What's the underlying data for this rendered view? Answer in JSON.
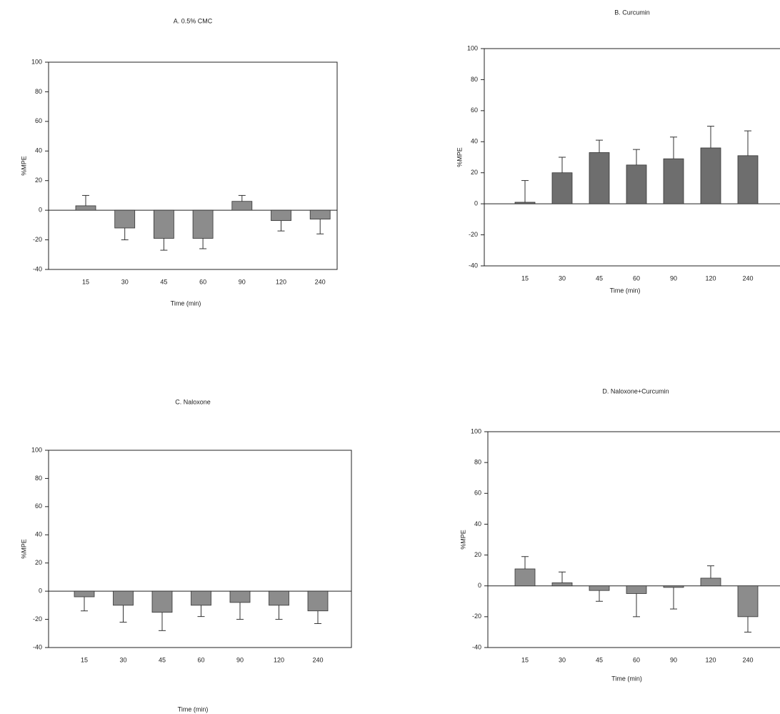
{
  "chart_data": [
    {
      "type": "bar",
      "title": "A. 0.5% CMC",
      "ylabel": "%MPE",
      "xlabel": "Time (min)",
      "categories": [
        "15",
        "30",
        "45",
        "60",
        "90",
        "120",
        "240"
      ],
      "values": [
        3,
        -12,
        -19,
        -19,
        6,
        -7,
        -6
      ],
      "errors": [
        7,
        8,
        8,
        7,
        4,
        7,
        10
      ],
      "color": "#8c8c8c",
      "ylim": [
        -40,
        100
      ],
      "yticks": [
        -40,
        -20,
        0,
        20,
        40,
        60,
        80,
        100
      ]
    },
    {
      "type": "bar",
      "title": "B. Curcumin",
      "ylabel": "%MPE",
      "xlabel": "Time (min)",
      "categories": [
        "15",
        "30",
        "45",
        "60",
        "90",
        "120",
        "240"
      ],
      "values": [
        1,
        20,
        33,
        25,
        29,
        36,
        31
      ],
      "errors": [
        14,
        10,
        8,
        10,
        14,
        14,
        16
      ],
      "color": "#6e6e6e",
      "ylim": [
        -40,
        100
      ],
      "yticks": [
        -40,
        -20,
        0,
        20,
        40,
        60,
        80,
        100
      ]
    },
    {
      "type": "bar",
      "title": "C. Naloxone",
      "ylabel": "%MPE",
      "xlabel": "Time (min)",
      "categories": [
        "15",
        "30",
        "45",
        "60",
        "90",
        "120",
        "240"
      ],
      "values": [
        -4,
        -10,
        -15,
        -10,
        -8,
        -10,
        -14
      ],
      "errors": [
        10,
        12,
        13,
        8,
        12,
        10,
        9
      ],
      "color": "#8c8c8c",
      "ylim": [
        -40,
        100
      ],
      "yticks": [
        -40,
        -20,
        0,
        20,
        40,
        60,
        80,
        100
      ]
    },
    {
      "type": "bar",
      "title": "D. Naloxone+Curcumin",
      "ylabel": "%MPE",
      "xlabel": "Time (min)",
      "categories": [
        "15",
        "30",
        "45",
        "60",
        "90",
        "120",
        "240"
      ],
      "values": [
        11,
        2,
        -3,
        -5,
        -1,
        5,
        -20
      ],
      "errors": [
        8,
        7,
        7,
        15,
        14,
        8,
        10
      ],
      "color": "#8c8c8c",
      "ylim": [
        -40,
        100
      ],
      "yticks": [
        -40,
        -20,
        0,
        20,
        40,
        60,
        80,
        100
      ]
    }
  ]
}
